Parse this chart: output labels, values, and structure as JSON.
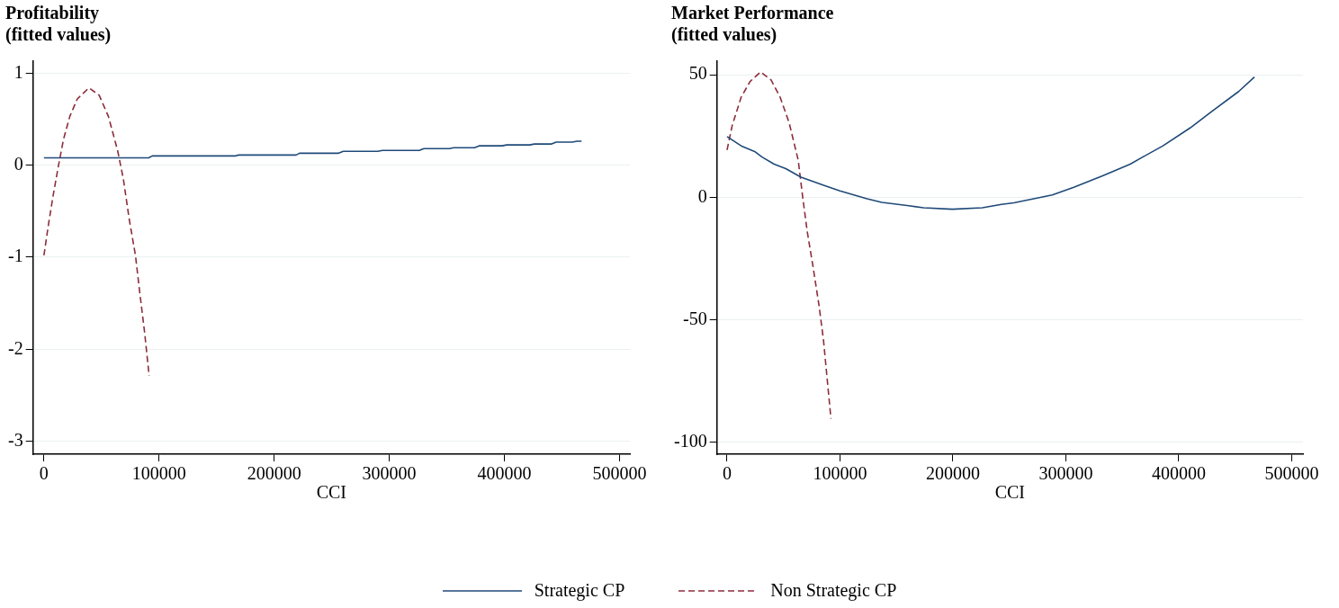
{
  "chart_data": [
    {
      "type": "line",
      "title": "Profitability",
      "subtitle": "(fitted values)",
      "xlabel": "CCI",
      "xlim": [
        -9500,
        509000
      ],
      "xticks": [
        0,
        100000,
        200000,
        300000,
        400000,
        500000
      ],
      "ylim": [
        -3.14,
        1.13
      ],
      "yticks": [
        1,
        0,
        -1,
        -2,
        -3
      ],
      "grid": "y",
      "legend": "bottom",
      "marker": "none",
      "series": [
        {
          "name": "Strategic CP",
          "color": "#1f4a78",
          "line_style": "solid",
          "x": [
            0,
            91000,
            94000,
            166000,
            169000,
            219000,
            222000,
            256000,
            260000,
            290000,
            294000,
            326000,
            330000,
            352000,
            356000,
            374000,
            378000,
            398000,
            402000,
            422000,
            426000,
            441000,
            445000,
            459000,
            463000,
            467000
          ],
          "values": [
            0.08,
            0.08,
            0.1,
            0.1,
            0.11,
            0.11,
            0.13,
            0.13,
            0.15,
            0.15,
            0.16,
            0.16,
            0.18,
            0.18,
            0.19,
            0.19,
            0.21,
            0.21,
            0.22,
            0.22,
            0.23,
            0.23,
            0.25,
            0.25,
            0.26,
            0.26
          ]
        },
        {
          "name": "Non Strategic CP",
          "color": "#8c2d3c",
          "line_style": "dashed",
          "x": [
            0,
            4000,
            8000,
            12700,
            17000,
            22500,
            29000,
            39000,
            48000,
            56000,
            64000,
            69000,
            74000,
            79500,
            83500,
            87400,
            91400
          ],
          "values": [
            -0.98,
            -0.64,
            -0.33,
            0.0,
            0.28,
            0.53,
            0.72,
            0.84,
            0.76,
            0.53,
            0.16,
            -0.15,
            -0.58,
            -0.98,
            -1.41,
            -1.81,
            -2.29
          ]
        }
      ]
    },
    {
      "type": "line",
      "title": "Market Performance",
      "subtitle": "(fitted values)",
      "xlabel": "CCI",
      "xlim": [
        -9000,
        510000
      ],
      "xticks": [
        0,
        100000,
        200000,
        300000,
        400000,
        500000
      ],
      "ylim": [
        -105,
        55.6
      ],
      "yticks": [
        50,
        0,
        -50,
        -100
      ],
      "grid": "y",
      "marker": "none",
      "series": [
        {
          "color": "#1f4a78",
          "line_style": "solid",
          "x": [
            0,
            12500,
            24400,
            31000,
            41700,
            52000,
            65500,
            86700,
            100000,
            124000,
            137000,
            161000,
            174000,
            199500,
            226000,
            243000,
            254000,
            288000,
            307000,
            333000,
            357000,
            368000,
            386000,
            410000,
            429000,
            453000,
            467000
          ],
          "values": [
            24.8,
            21.0,
            18.7,
            16.4,
            13.5,
            11.7,
            8.2,
            4.7,
            2.6,
            -0.6,
            -2.1,
            -3.5,
            -4.3,
            -4.9,
            -4.3,
            -2.9,
            -2.3,
            0.9,
            4.1,
            8.8,
            13.5,
            16.4,
            21.0,
            28.3,
            35.0,
            43.2,
            49.1
          ]
        },
        {
          "color": "#8c2d3c",
          "line_style": "dashed",
          "x": [
            0,
            4500,
            12500,
            20400,
            29700,
            39000,
            47000,
            55000,
            63000,
            67000,
            71000,
            76000,
            81500,
            85400,
            89000,
            92000
          ],
          "values": [
            19.3,
            29.2,
            40.9,
            47.3,
            51.2,
            47.9,
            40.9,
            30.4,
            15.2,
            0.0,
            -14.0,
            -28.0,
            -44.4,
            -58.4,
            -75.9,
            -90.5
          ]
        }
      ]
    }
  ]
}
